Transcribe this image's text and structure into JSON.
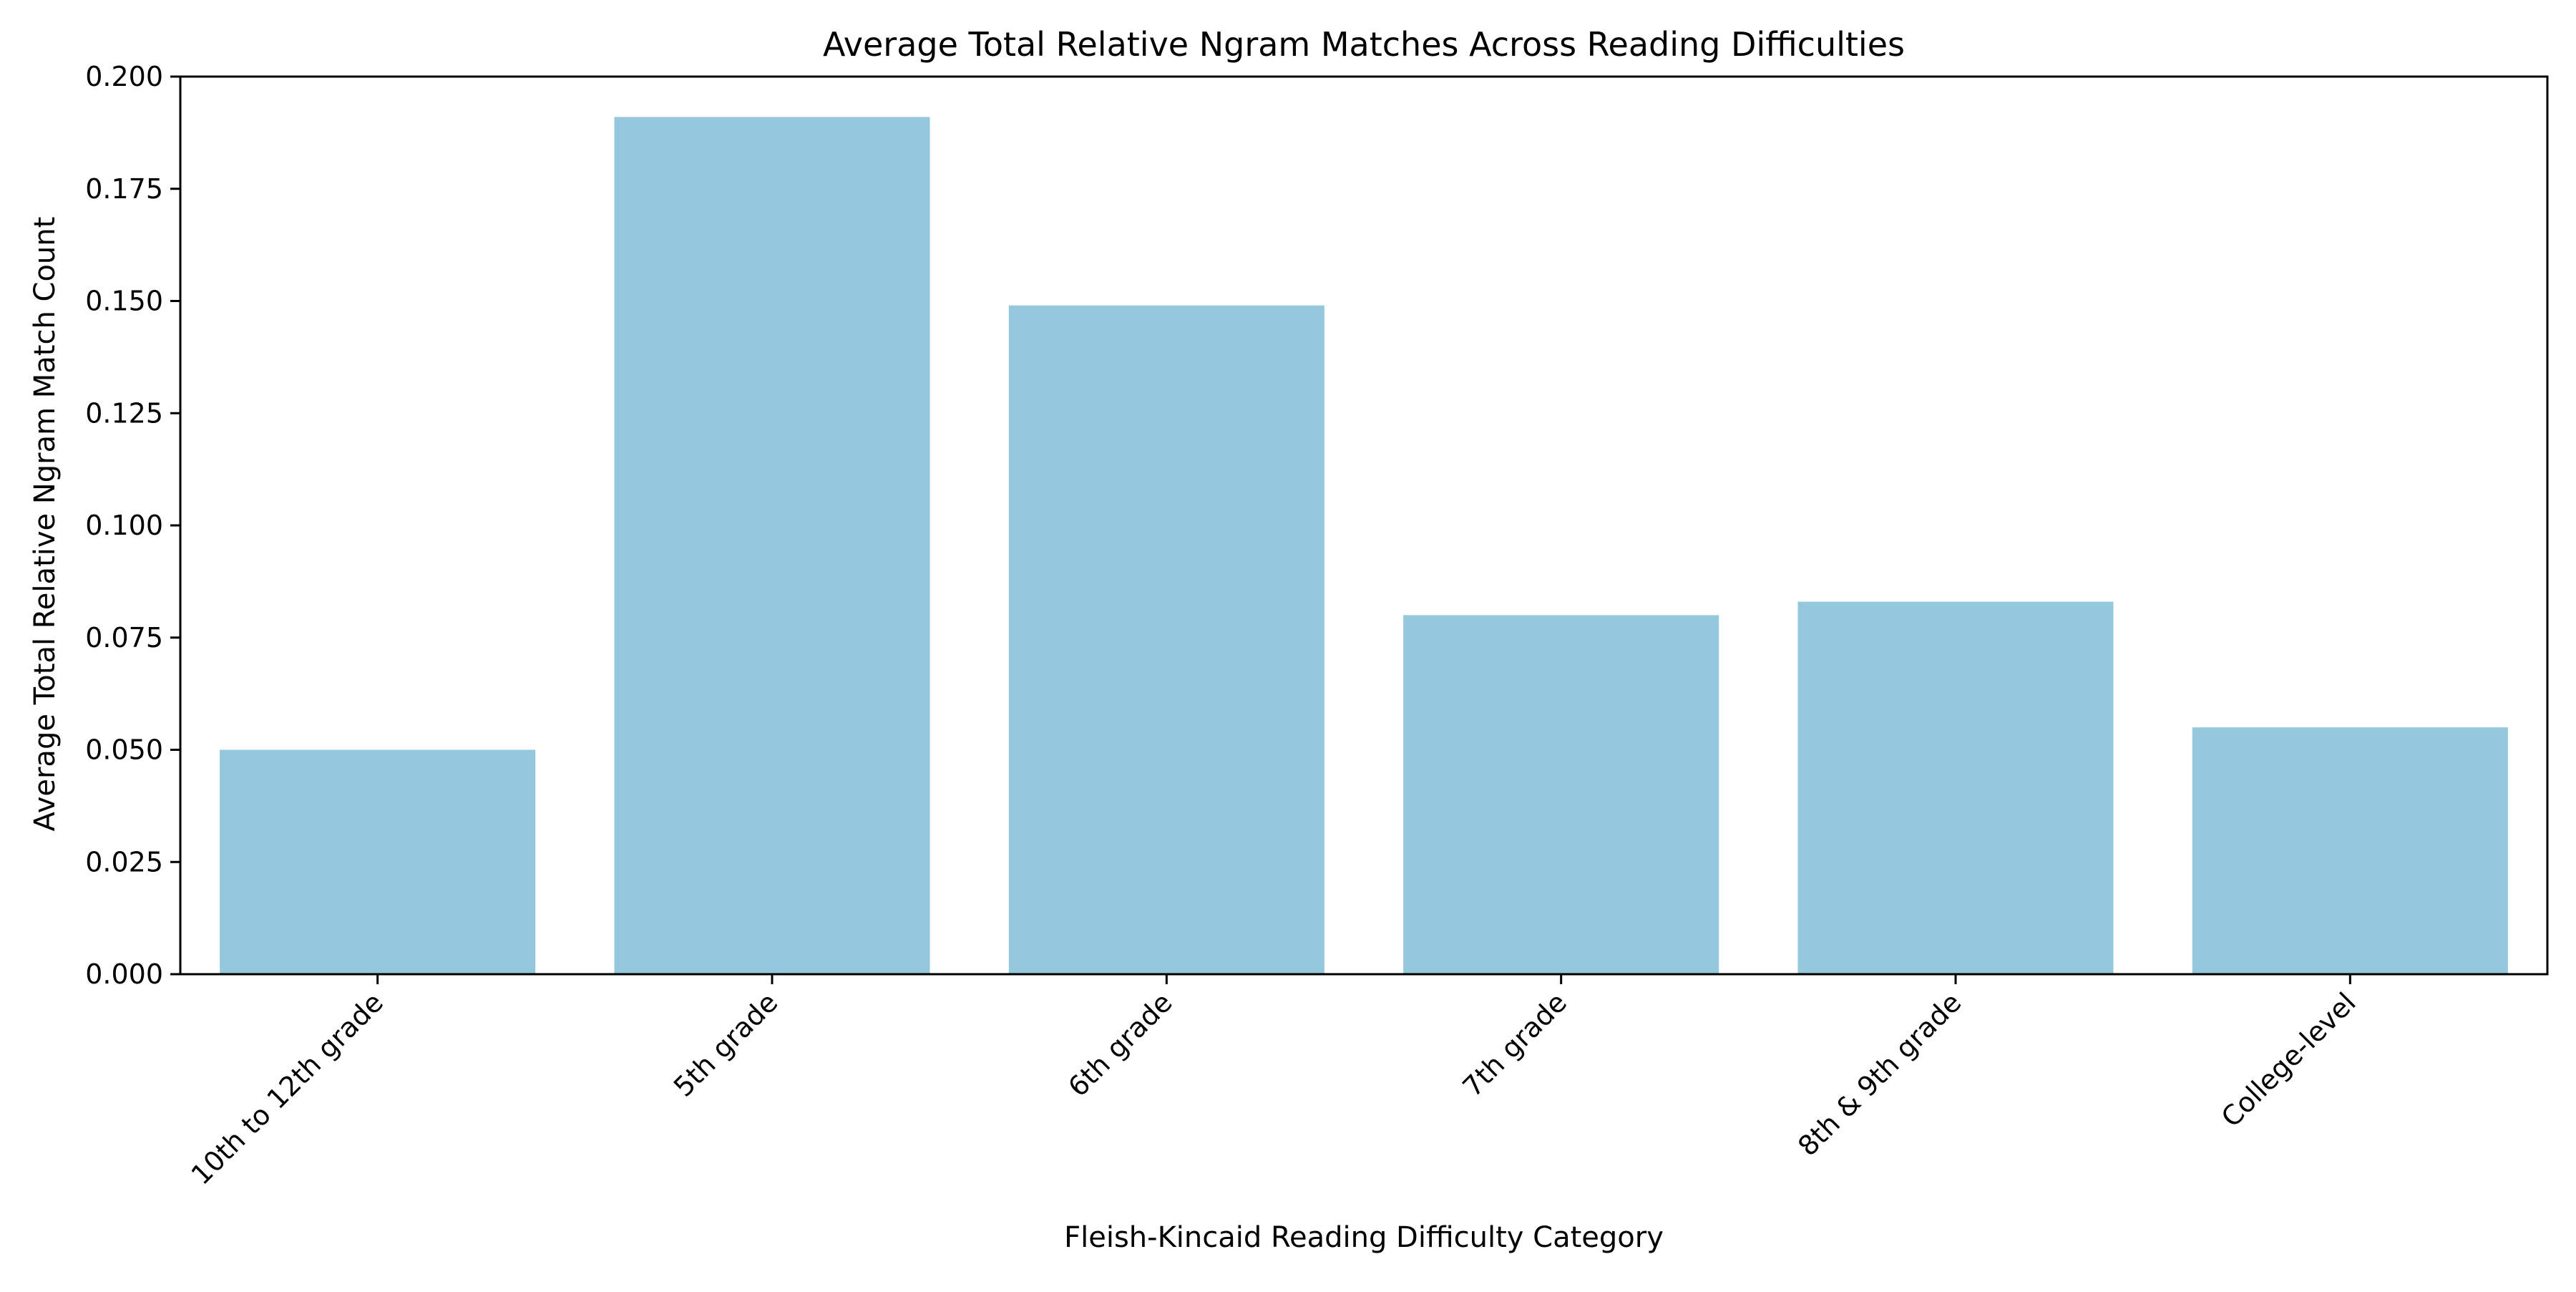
{
  "chart_data": {
    "type": "bar",
    "title": "Average Total Relative Ngram Matches Across Reading Difficulties",
    "xlabel": "Fleish-Kincaid Reading Difficulty Category",
    "ylabel": "Average Total Relative Ngram Match Count",
    "categories": [
      "10th to 12th grade",
      "5th grade",
      "6th grade",
      "7th grade",
      "8th & 9th grade",
      "College-level"
    ],
    "values": [
      0.05,
      0.191,
      0.149,
      0.08,
      0.083,
      0.055
    ],
    "ylim": [
      0,
      0.2
    ],
    "yticks": [
      "0.000",
      "0.025",
      "0.050",
      "0.075",
      "0.100",
      "0.125",
      "0.150",
      "0.175",
      "0.200"
    ],
    "grid": false,
    "legend": "none",
    "bar_color": "#95c8dd"
  }
}
